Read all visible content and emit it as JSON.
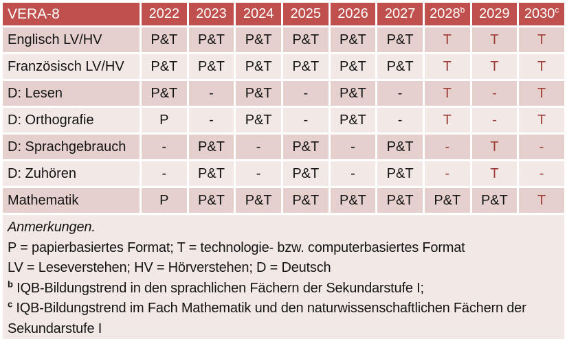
{
  "colors": {
    "header_bg": "#c0504d",
    "header_text": "#ffffff",
    "row_dark": "#e5d0cd",
    "row_light": "#f2e9e7",
    "notes_bg": "#f2e9e7",
    "accent_text": "#9e3c38",
    "body_text": "#141414"
  },
  "table": {
    "corner_label": "VERA-8",
    "years": [
      {
        "label": "2022",
        "sup": ""
      },
      {
        "label": "2023",
        "sup": ""
      },
      {
        "label": "2024",
        "sup": ""
      },
      {
        "label": "2025",
        "sup": ""
      },
      {
        "label": "2026",
        "sup": ""
      },
      {
        "label": "2027",
        "sup": ""
      },
      {
        "label": "2028",
        "sup": "b"
      },
      {
        "label": "2029",
        "sup": ""
      },
      {
        "label": "2030",
        "sup": "c"
      }
    ],
    "rows": [
      {
        "label": "Englisch LV/HV",
        "shade": "dark",
        "cells": [
          {
            "v": "P&T",
            "red": false
          },
          {
            "v": "P&T",
            "red": false
          },
          {
            "v": "P&T",
            "red": false
          },
          {
            "v": "P&T",
            "red": false
          },
          {
            "v": "P&T",
            "red": false
          },
          {
            "v": "P&T",
            "red": false
          },
          {
            "v": "T",
            "red": true
          },
          {
            "v": "T",
            "red": true
          },
          {
            "v": "T",
            "red": true
          }
        ]
      },
      {
        "label": "Französisch LV/HV",
        "shade": "light",
        "cells": [
          {
            "v": "P&T",
            "red": false
          },
          {
            "v": "P&T",
            "red": false
          },
          {
            "v": "P&T",
            "red": false
          },
          {
            "v": "P&T",
            "red": false
          },
          {
            "v": "P&T",
            "red": false
          },
          {
            "v": "P&T",
            "red": false
          },
          {
            "v": "T",
            "red": true
          },
          {
            "v": "T",
            "red": true
          },
          {
            "v": "T",
            "red": true
          }
        ]
      },
      {
        "label": "D: Lesen",
        "shade": "dark",
        "cells": [
          {
            "v": "P&T",
            "red": false
          },
          {
            "v": "-",
            "red": false
          },
          {
            "v": "P&T",
            "red": false
          },
          {
            "v": "-",
            "red": false
          },
          {
            "v": "P&T",
            "red": false
          },
          {
            "v": "-",
            "red": false
          },
          {
            "v": "T",
            "red": true
          },
          {
            "v": "-",
            "red": true
          },
          {
            "v": "T",
            "red": true
          }
        ]
      },
      {
        "label": "D: Orthografie",
        "shade": "light",
        "cells": [
          {
            "v": "P",
            "red": false
          },
          {
            "v": "-",
            "red": false
          },
          {
            "v": "P&T",
            "red": false
          },
          {
            "v": "-",
            "red": false
          },
          {
            "v": "P&T",
            "red": false
          },
          {
            "v": "-",
            "red": false
          },
          {
            "v": "T",
            "red": true
          },
          {
            "v": "-",
            "red": true
          },
          {
            "v": "T",
            "red": true
          }
        ]
      },
      {
        "label": "D: Sprachgebrauch",
        "shade": "dark",
        "cells": [
          {
            "v": "-",
            "red": false
          },
          {
            "v": "P&T",
            "red": false
          },
          {
            "v": "-",
            "red": false
          },
          {
            "v": "P&T",
            "red": false
          },
          {
            "v": "-",
            "red": false
          },
          {
            "v": "P&T",
            "red": false
          },
          {
            "v": "-",
            "red": true
          },
          {
            "v": "T",
            "red": true
          },
          {
            "v": "-",
            "red": true
          }
        ]
      },
      {
        "label": "D: Zuhören",
        "shade": "light",
        "cells": [
          {
            "v": "-",
            "red": false
          },
          {
            "v": "P&T",
            "red": false
          },
          {
            "v": "-",
            "red": false
          },
          {
            "v": "P&T",
            "red": false
          },
          {
            "v": "-",
            "red": false
          },
          {
            "v": "P&T",
            "red": false
          },
          {
            "v": "-",
            "red": true
          },
          {
            "v": "T",
            "red": true
          },
          {
            "v": "-",
            "red": true
          }
        ]
      },
      {
        "label": "Mathematik",
        "shade": "dark",
        "cells": [
          {
            "v": "P",
            "red": false
          },
          {
            "v": "P&T",
            "red": false
          },
          {
            "v": "P&T",
            "red": false
          },
          {
            "v": "P&T",
            "red": false
          },
          {
            "v": "P&T",
            "red": false
          },
          {
            "v": "P&T",
            "red": false
          },
          {
            "v": "P&T",
            "red": false
          },
          {
            "v": "P&T",
            "red": false
          },
          {
            "v": "T",
            "red": true
          }
        ]
      }
    ]
  },
  "notes": {
    "title": "Anmerkungen.",
    "line_formats": "P = papierbasiertes Format; T = technologie- bzw. computerbasiertes Format",
    "line_abbrev": "LV = Leseverstehen; HV = Hörverstehen; D = Deutsch",
    "footnote_b": {
      "marker": "b",
      "text": "IQB-Bildungstrend in den sprachlichen Fächern der Sekundarstufe I;"
    },
    "footnote_c": {
      "marker": "c",
      "text": "IQB-Bildungstrend im Fach Mathematik und den naturwissenschaftlichen Fächern der Sekundarstufe I"
    }
  }
}
